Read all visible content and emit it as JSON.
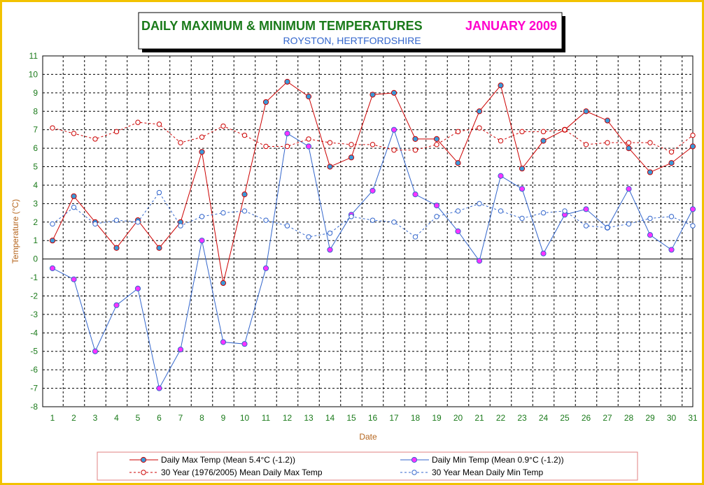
{
  "chart_data": {
    "type": "line",
    "title": "DAILY MAXIMUM &  MINIMUM  TEMPERATURES",
    "title_period": "JANUARY 2009",
    "subtitle": "ROYSTON, HERTFORDSHIRE",
    "xlabel": "Date",
    "ylabel": "Temperature (°C)",
    "ylim": [
      -8,
      11
    ],
    "y_ticks": [
      "-8",
      "-7",
      "-6",
      "-5",
      "-4",
      "-3",
      "-2",
      "-1",
      "0",
      "1",
      "2",
      "3",
      "4",
      "5",
      "6",
      "7",
      "8",
      "9",
      "10",
      "11"
    ],
    "x": [
      "1",
      "2",
      "3",
      "4",
      "5",
      "6",
      "7",
      "8",
      "9",
      "10",
      "11",
      "12",
      "13",
      "14",
      "15",
      "16",
      "17",
      "18",
      "19",
      "20",
      "21",
      "22",
      "23",
      "24",
      "25",
      "26",
      "27",
      "28",
      "29",
      "30",
      "31"
    ],
    "grid": true,
    "legend_placement": "bottom",
    "series": [
      {
        "name": "Daily Max Temp (Mean 5.4°C (-1.2))",
        "color": "#cc0000",
        "marker_fill": "#3a9ad9",
        "style": "solid",
        "values": [
          1.0,
          3.4,
          2.0,
          0.6,
          2.1,
          0.6,
          2.0,
          5.8,
          -1.3,
          3.5,
          8.5,
          9.6,
          8.8,
          5.0,
          5.5,
          8.9,
          9.0,
          6.5,
          6.5,
          5.2,
          8.0,
          9.4,
          4.9,
          6.4,
          7.0,
          8.0,
          7.5,
          6.0,
          4.7,
          5.2,
          6.1
        ]
      },
      {
        "name": "Daily Min Temp (Mean 0.9°C (-1.2))",
        "color": "#3366cc",
        "marker_fill": "#ff33ff",
        "style": "solid",
        "values": [
          -0.5,
          -1.1,
          -5.0,
          -2.5,
          -1.6,
          -7.0,
          -4.9,
          1.0,
          -4.5,
          -4.6,
          -0.5,
          6.8,
          6.1,
          0.5,
          2.4,
          3.7,
          7.0,
          3.5,
          2.9,
          1.5,
          -0.1,
          4.5,
          3.8,
          0.3,
          2.4,
          2.7,
          1.7,
          3.8,
          1.3,
          0.5,
          2.7
        ]
      },
      {
        "name": "30 Year (1976/2005) Mean Daily Max Temp",
        "color": "#cc0000",
        "marker_fill": "none",
        "style": "dashed",
        "values": [
          7.1,
          6.8,
          6.5,
          6.9,
          7.4,
          7.3,
          6.3,
          6.6,
          7.2,
          6.7,
          6.1,
          6.1,
          6.5,
          6.3,
          6.2,
          6.2,
          5.9,
          5.9,
          6.2,
          6.9,
          7.1,
          6.4,
          6.9,
          6.9,
          7.0,
          6.2,
          6.3,
          6.3,
          6.3,
          5.8,
          6.7
        ]
      },
      {
        "name": "30 Year Mean Daily Min Temp",
        "color": "#3366cc",
        "marker_fill": "none",
        "style": "dashed",
        "values": [
          1.9,
          2.8,
          1.9,
          2.1,
          2.0,
          3.6,
          1.8,
          2.3,
          2.5,
          2.6,
          2.1,
          1.8,
          1.2,
          1.4,
          2.3,
          2.1,
          2.0,
          1.2,
          2.3,
          2.6,
          3.0,
          2.6,
          2.2,
          2.5,
          2.6,
          1.8,
          1.7,
          1.9,
          2.2,
          2.3,
          1.8
        ]
      }
    ]
  },
  "colors": {
    "frame": "#f2c200",
    "title": "#1a7a1a",
    "period": "#ff00cc",
    "subtitle": "#3366cc",
    "axis_text": "#1a7a1a",
    "axis_label": "#b5651d",
    "legend_border": "#e08080"
  }
}
